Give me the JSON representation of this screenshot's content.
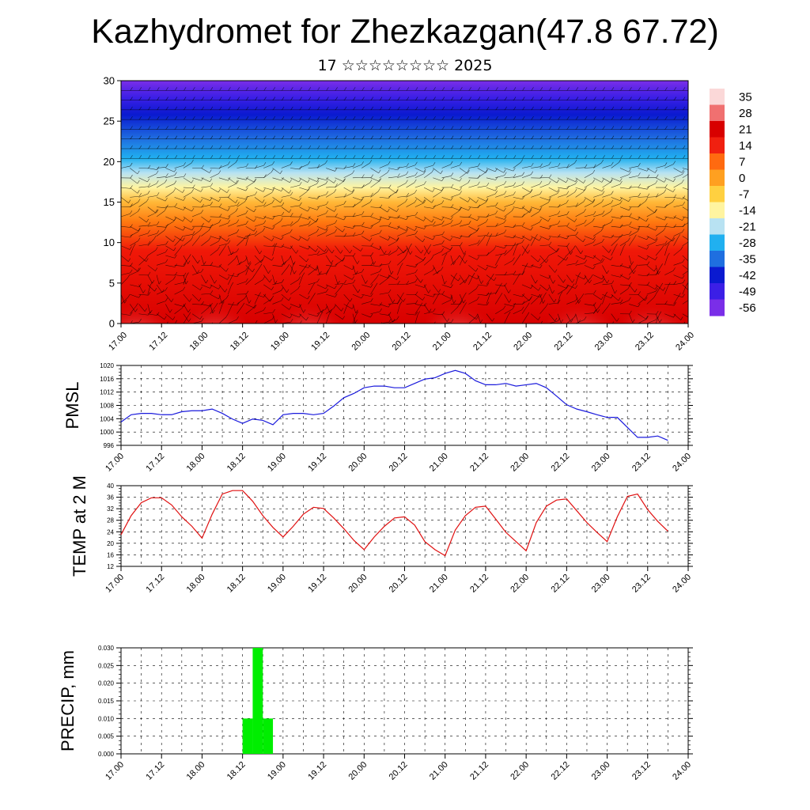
{
  "header": {
    "title": "Kazhydromet for Zhezkazgan(47.8 67.72)",
    "subtitle": "17 ☆☆☆☆☆☆☆☆ 2025"
  },
  "colors": {
    "pmsl_line": "#1a1adc",
    "temp_line": "#e01010",
    "precip_bar": "#00ee00",
    "colorscale": [
      "#7a2ee8",
      "#3b1fe6",
      "#0a1ad0",
      "#1f6fe0",
      "#20b0f0",
      "#b8e2f2",
      "#fff4a0",
      "#ffd040",
      "#ffa020",
      "#ff6a10",
      "#f02010",
      "#d80000",
      "#f07070",
      "#fbd8d8"
    ]
  },
  "chart_data": [
    {
      "type": "heatmap",
      "name": "cross-section",
      "ylim": [
        0,
        30
      ],
      "yticks": [
        "0",
        "5",
        "10",
        "15",
        "20",
        "25",
        "30"
      ],
      "xticks": [
        "17.00",
        "17.12",
        "18.00",
        "18.12",
        "19.00",
        "19.12",
        "20.00",
        "20.12",
        "21.00",
        "21.12",
        "22.00",
        "22.12",
        "23.00",
        "23.12",
        "24.00"
      ],
      "colorbar_labels": [
        "35",
        "28",
        "21",
        "14",
        "7",
        "0",
        "-7",
        "-14",
        "-21",
        "-28",
        "-35",
        "-42",
        "-49",
        "-56"
      ],
      "overlay": "wind barbs"
    },
    {
      "type": "line",
      "ylabel": "PMSL",
      "ylim": [
        996,
        1020
      ],
      "yticks": [
        "996",
        "1000",
        "1004",
        "1008",
        "1012",
        "1016",
        "1020"
      ],
      "xticks": [
        "17.00",
        "17.12",
        "18.00",
        "18.12",
        "19.00",
        "19.12",
        "20.00",
        "20.12",
        "21.00",
        "21.12",
        "22.00",
        "22.12",
        "23.00",
        "23.12",
        "24.00"
      ],
      "x": [
        0,
        0.125,
        0.25,
        0.375,
        0.5,
        0.625,
        0.75,
        0.875,
        1,
        1.125,
        1.25,
        1.375,
        1.5,
        1.625,
        1.75,
        1.875,
        2,
        2.125,
        2.25,
        2.375,
        2.5,
        2.625,
        2.75,
        2.875,
        3,
        3.125,
        3.25,
        3.375,
        3.5,
        3.625,
        3.75,
        3.875,
        4,
        4.125,
        4.25,
        4.375,
        4.5,
        4.625,
        4.75,
        4.875,
        5,
        5.125,
        5.25,
        5.375,
        5.5,
        5.625,
        5.75,
        5.875,
        6,
        6.125,
        6.25,
        6.375,
        6.5,
        6.625,
        6.75
      ],
      "values": [
        1003,
        1005.2,
        1005.6,
        1005.6,
        1005.2,
        1005.2,
        1006.1,
        1006.4,
        1006.4,
        1006.9,
        1005.6,
        1003.9,
        1002.6,
        1003.9,
        1003.5,
        1002.2,
        1005.2,
        1005.6,
        1005.6,
        1005.2,
        1005.6,
        1007.8,
        1010.3,
        1011.6,
        1013.3,
        1013.8,
        1013.8,
        1013.3,
        1013.3,
        1014.6,
        1015.9,
        1016.3,
        1017.6,
        1018.5,
        1017.6,
        1015.4,
        1014.2,
        1014.2,
        1014.6,
        1013.8,
        1014.2,
        1014.6,
        1013.3,
        1010.8,
        1008.2,
        1006.9,
        1006.1,
        1005.2,
        1004.4,
        1004.4,
        1001.4,
        998.4,
        998.4,
        998.8,
        997.5
      ]
    },
    {
      "type": "line",
      "ylabel": "TEMP at 2 M",
      "ylim": [
        12,
        40
      ],
      "yticks": [
        "12",
        "16",
        "20",
        "24",
        "28",
        "32",
        "36",
        "40"
      ],
      "xticks": [
        "17.00",
        "17.12",
        "18.00",
        "18.12",
        "19.00",
        "19.12",
        "20.00",
        "20.12",
        "21.00",
        "21.12",
        "22.00",
        "22.12",
        "23.00",
        "23.12",
        "24.00"
      ],
      "x": [
        0,
        0.125,
        0.25,
        0.375,
        0.5,
        0.625,
        0.75,
        0.875,
        1,
        1.125,
        1.25,
        1.375,
        1.5,
        1.625,
        1.75,
        1.875,
        2,
        2.125,
        2.25,
        2.375,
        2.5,
        2.625,
        2.75,
        2.875,
        3,
        3.125,
        3.25,
        3.375,
        3.5,
        3.625,
        3.75,
        3.875,
        4,
        4.125,
        4.25,
        4.375,
        4.5,
        4.625,
        4.75,
        4.875,
        5,
        5.125,
        5.25,
        5.375,
        5.5,
        5.625,
        5.75,
        5.875,
        6,
        6.125,
        6.25,
        6.375,
        6.5,
        6.625,
        6.75
      ],
      "values": [
        23,
        29.6,
        34.1,
        35.8,
        35.8,
        33.3,
        29.2,
        25.9,
        21.8,
        30.1,
        37.1,
        38.3,
        38.3,
        34.6,
        29.6,
        25.5,
        22.2,
        25.9,
        30.1,
        32.5,
        32.1,
        28.8,
        25.1,
        21,
        17.8,
        22.2,
        25.9,
        28.8,
        29.2,
        26.3,
        20.6,
        17.8,
        15.7,
        24.6,
        29.6,
        32.5,
        32.9,
        28.4,
        23.8,
        20.6,
        17.4,
        27.2,
        32.9,
        35,
        35.4,
        31.3,
        27.2,
        23.8,
        20.6,
        29.2,
        36.3,
        37.1,
        31.7,
        27.6,
        24.2
      ]
    },
    {
      "type": "bar",
      "ylabel": "PRECIP, mm",
      "ylim": [
        0,
        0.03
      ],
      "yticks": [
        "0.000",
        "0.005",
        "0.010",
        "0.015",
        "0.020",
        "0.025",
        "0.030"
      ],
      "xticks": [
        "17.00",
        "17.12",
        "18.00",
        "18.12",
        "19.00",
        "19.12",
        "20.00",
        "20.12",
        "21.00",
        "21.12",
        "22.00",
        "22.12",
        "23.00",
        "23.12",
        "24.00"
      ],
      "bars": [
        {
          "x_start": 1.5,
          "x_end": 1.625,
          "value": 0.01
        },
        {
          "x_start": 1.625,
          "x_end": 1.75,
          "value": 0.03
        },
        {
          "x_start": 1.75,
          "x_end": 1.875,
          "value": 0.01
        }
      ]
    }
  ]
}
